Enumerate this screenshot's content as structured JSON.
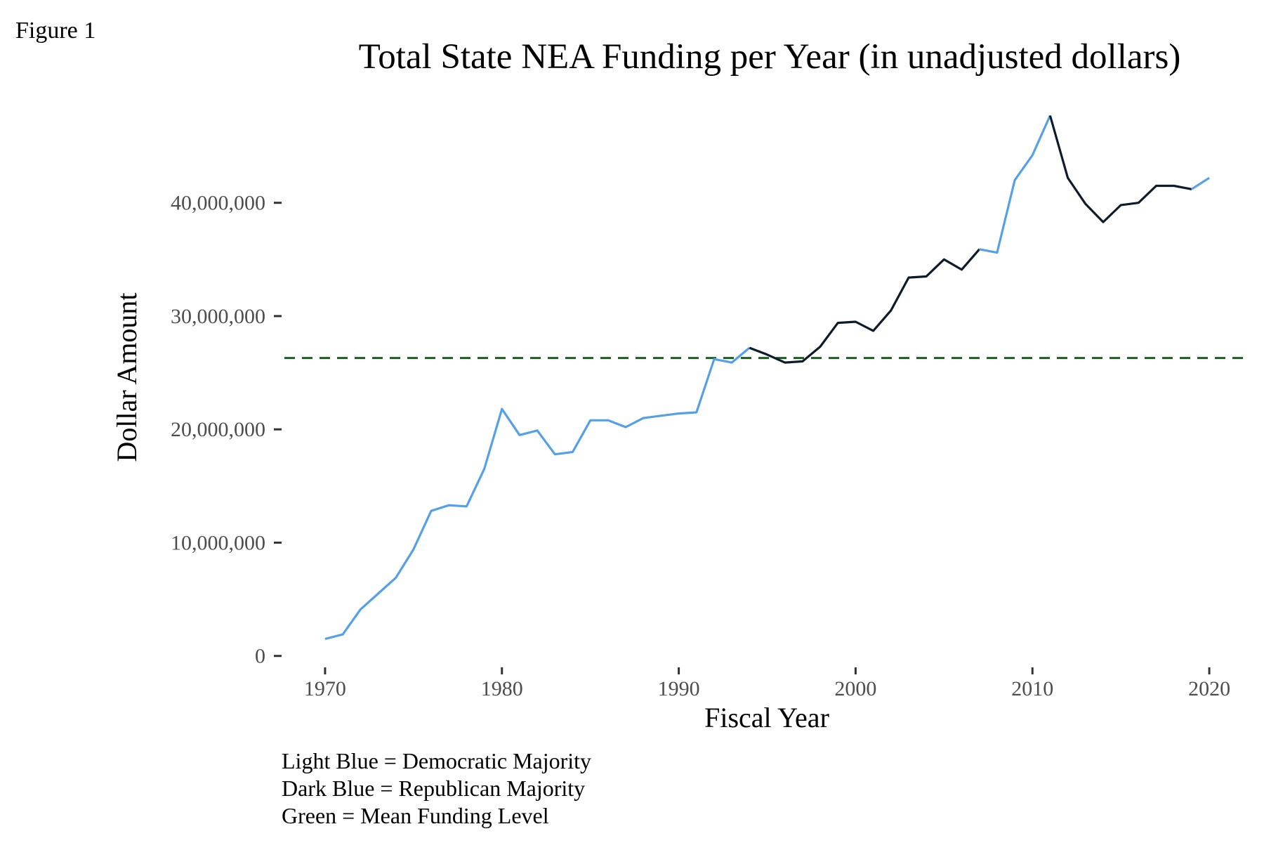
{
  "figure_label": "Figure 1",
  "chart_data": {
    "type": "line",
    "title": "Total State NEA Funding per Year (in unadjusted dollars)",
    "xlabel": "Fiscal Year",
    "ylabel": "Dollar Amount",
    "x_ticks": [
      1970,
      1980,
      1990,
      2000,
      2010,
      2020
    ],
    "y_ticks": [
      {
        "value": 0,
        "label": "0"
      },
      {
        "value": 10000000,
        "label": "10,000,000"
      },
      {
        "value": 20000000,
        "label": "20,000,000"
      },
      {
        "value": 30000000,
        "label": "30,000,000"
      },
      {
        "value": 40000000,
        "label": "40,000,000"
      }
    ],
    "xlim": [
      1967.7,
      1822.3
    ],
    "ylim": [
      -700000,
      48600000
    ],
    "grid": false,
    "legend": "none",
    "series": [
      {
        "party_color": "#56a0e8",
        "x": [
          1970,
          1971,
          1972,
          1973,
          1974,
          1975,
          1976,
          1977,
          1978,
          1979,
          1980,
          1981,
          1982,
          1983,
          1984,
          1985,
          1986,
          1987,
          1988,
          1989,
          1990,
          1991,
          1992,
          1993,
          1994,
          1995,
          1996,
          1997,
          1998,
          1999,
          2000,
          2001,
          2002,
          2003,
          2004,
          2005,
          2006,
          2007,
          2008,
          2009,
          2010,
          2011,
          2012,
          2013,
          2014,
          2015,
          2016,
          2017,
          2018,
          2019,
          2020
        ],
        "values": [
          1500000,
          1900000,
          4100000,
          5500000,
          6900000,
          9400000,
          12800000,
          13300000,
          13200000,
          16500000,
          21800000,
          19500000,
          19900000,
          17800000,
          18000000,
          20800000,
          20800000,
          20200000,
          21000000,
          21200000,
          21400000,
          21500000,
          26200000,
          25900000,
          27200000,
          26600000,
          25900000,
          26000000,
          27300000,
          29400000,
          29500000,
          28700000,
          30500000,
          33400000,
          33500000,
          35000000,
          34100000,
          35900000,
          35600000,
          42000000,
          44200000,
          47700000,
          42200000,
          39900000,
          38300000,
          39800000,
          40000000,
          41500000,
          41500000,
          41200000,
          42200000
        ]
      }
    ],
    "majority_periods": [
      {
        "party": "Democratic",
        "color": "#56a0e8",
        "from": 1970,
        "to": 1994
      },
      {
        "party": "Republican",
        "color": "#0d1b2a",
        "from": 1994,
        "to": 2007
      },
      {
        "party": "Democratic",
        "color": "#56a0e8",
        "from": 2007,
        "to": 2011
      },
      {
        "party": "Republican",
        "color": "#0d1b2a",
        "from": 2011,
        "to": 2019
      },
      {
        "party": "Democratic",
        "color": "#56a0e8",
        "from": 2019,
        "to": 2020
      }
    ],
    "mean_line": {
      "value": 26300000,
      "color": "#1b5e20",
      "style": "dashed"
    },
    "caption_lines": [
      "Light Blue = Democratic Majority",
      "Dark Blue = Republican Majority",
      "Green = Mean Funding Level"
    ]
  }
}
